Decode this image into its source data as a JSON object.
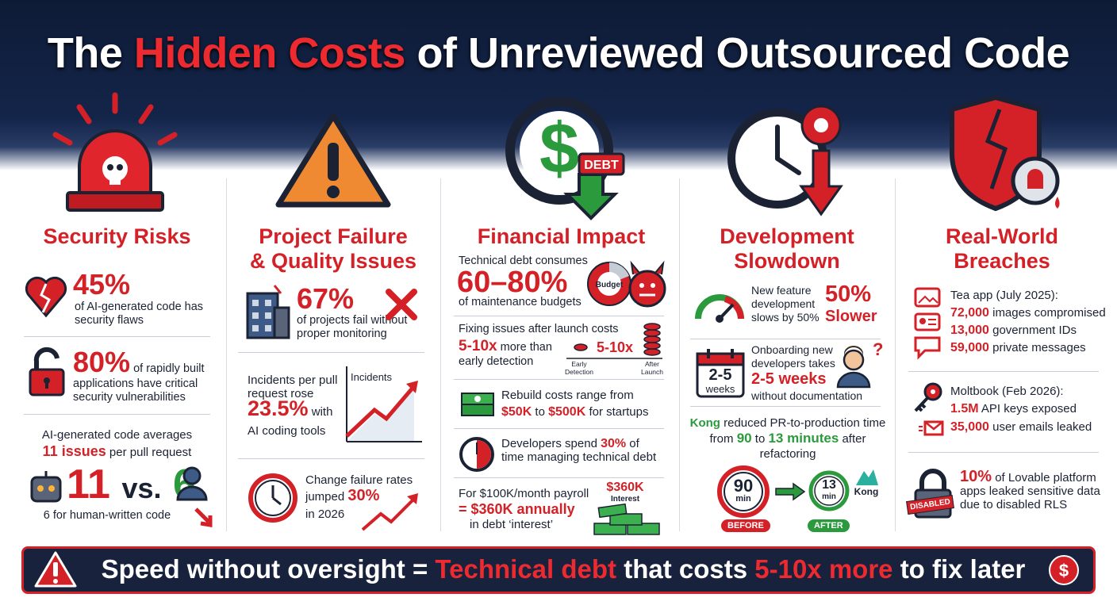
{
  "header": {
    "title": {
      "before": "The",
      "highlight": "Hidden Costs",
      "after": "of Unreviewed Outsourced Code"
    }
  },
  "columns": [
    {
      "heading": [
        "Security Risks"
      ],
      "items": [
        {
          "stat": "45%",
          "text": "of AI-generated code has security flaws"
        },
        {
          "stat": "80%",
          "text": "of rapidly built applications have critical security vulnerabilities"
        },
        {
          "intro": "AI-generated code averages",
          "highlight": "11 issues",
          "highlight_rest": "per pull request",
          "ai_count": "11",
          "versus": "vs.",
          "human_count": "6",
          "caption": "6 for human-written code"
        }
      ]
    },
    {
      "heading": [
        "Project Failure",
        "& Quality Issues"
      ],
      "items": [
        {
          "stat": "67%",
          "text": "of projects fail without proper monitoring"
        },
        {
          "intro": "Incidents per pull request rose",
          "stat": "23.5%",
          "after": "with",
          "tail": "AI coding tools",
          "chart_label": "Incidents"
        },
        {
          "intro": "Change failure rates",
          "before": "jumped",
          "stat": "30%",
          "tail": "in 2026"
        }
      ]
    },
    {
      "heading": [
        "Financial Impact"
      ],
      "icon_tag": "DEBT",
      "items": [
        {
          "intro": "Technical debt consumes",
          "stat": "60–80%",
          "text": "of maintenance budgets",
          "icon_label": "Budget"
        },
        {
          "intro": "Fixing issues after launch costs",
          "stat": "5-10x",
          "after": "more than",
          "tail": "early detection",
          "chart_stat": "5-10x",
          "chart_from": [
            "Early",
            "Detection"
          ],
          "chart_to": [
            "After",
            "Launch"
          ]
        },
        {
          "intro": "Rebuild costs range from",
          "low": "$50K",
          "joiner": "to",
          "high": "$500K",
          "tail": "for startups"
        },
        {
          "before": "Developers spend",
          "stat": "30%",
          "after": "of time managing technical debt"
        },
        {
          "intro": "For $100K/month payroll",
          "stat": "= $360K annually",
          "tail": "in debt ‘interest’",
          "icon_amount": "$360K",
          "icon_label": "Interest"
        }
      ]
    },
    {
      "heading": [
        "Development",
        "Slowdown"
      ],
      "items": [
        {
          "text": "New feature development slows by 50%",
          "stat": "50%",
          "label": "Slower"
        },
        {
          "intro": "Onboarding new developers takes",
          "stat": "2-5 weeks",
          "tail": "without documentation",
          "icon_value": "2-5",
          "icon_unit": "weeks"
        },
        {
          "company": "Kong",
          "before": "reduced PR-to-production time from",
          "from": "90",
          "joiner": "to",
          "to": "13 minutes",
          "tail": "after refactoring",
          "before_clock": {
            "value": "90",
            "unit": "min",
            "tag": "BEFORE"
          },
          "after_clock": {
            "value": "13",
            "unit": "min",
            "tag": "AFTER"
          },
          "logo": "Kong"
        }
      ]
    },
    {
      "heading": [
        "Real-World",
        "Breaches"
      ],
      "items": [
        {
          "title": "Tea app (July 2025):",
          "lines": [
            {
              "count": "72,000",
              "text": "images compromised"
            },
            {
              "count": "13,000",
              "text": "government IDs"
            },
            {
              "count": "59,000",
              "text": "private messages"
            }
          ]
        },
        {
          "title": "Moltbook (Feb 2026):",
          "lines": [
            {
              "count": "1.5M",
              "text": "API keys exposed"
            },
            {
              "count": "35,000",
              "text": "user emails leaked"
            }
          ]
        },
        {
          "stat": "10%",
          "text": "of Lovable platform apps leaked sensitive data due to disabled RLS",
          "badge": "DISABLED"
        }
      ]
    }
  ],
  "banner": {
    "part1": "Speed without oversight =",
    "highlight1": "Technical debt",
    "part2": "that costs",
    "highlight2": "5-10x more",
    "part3": "to fix later"
  }
}
